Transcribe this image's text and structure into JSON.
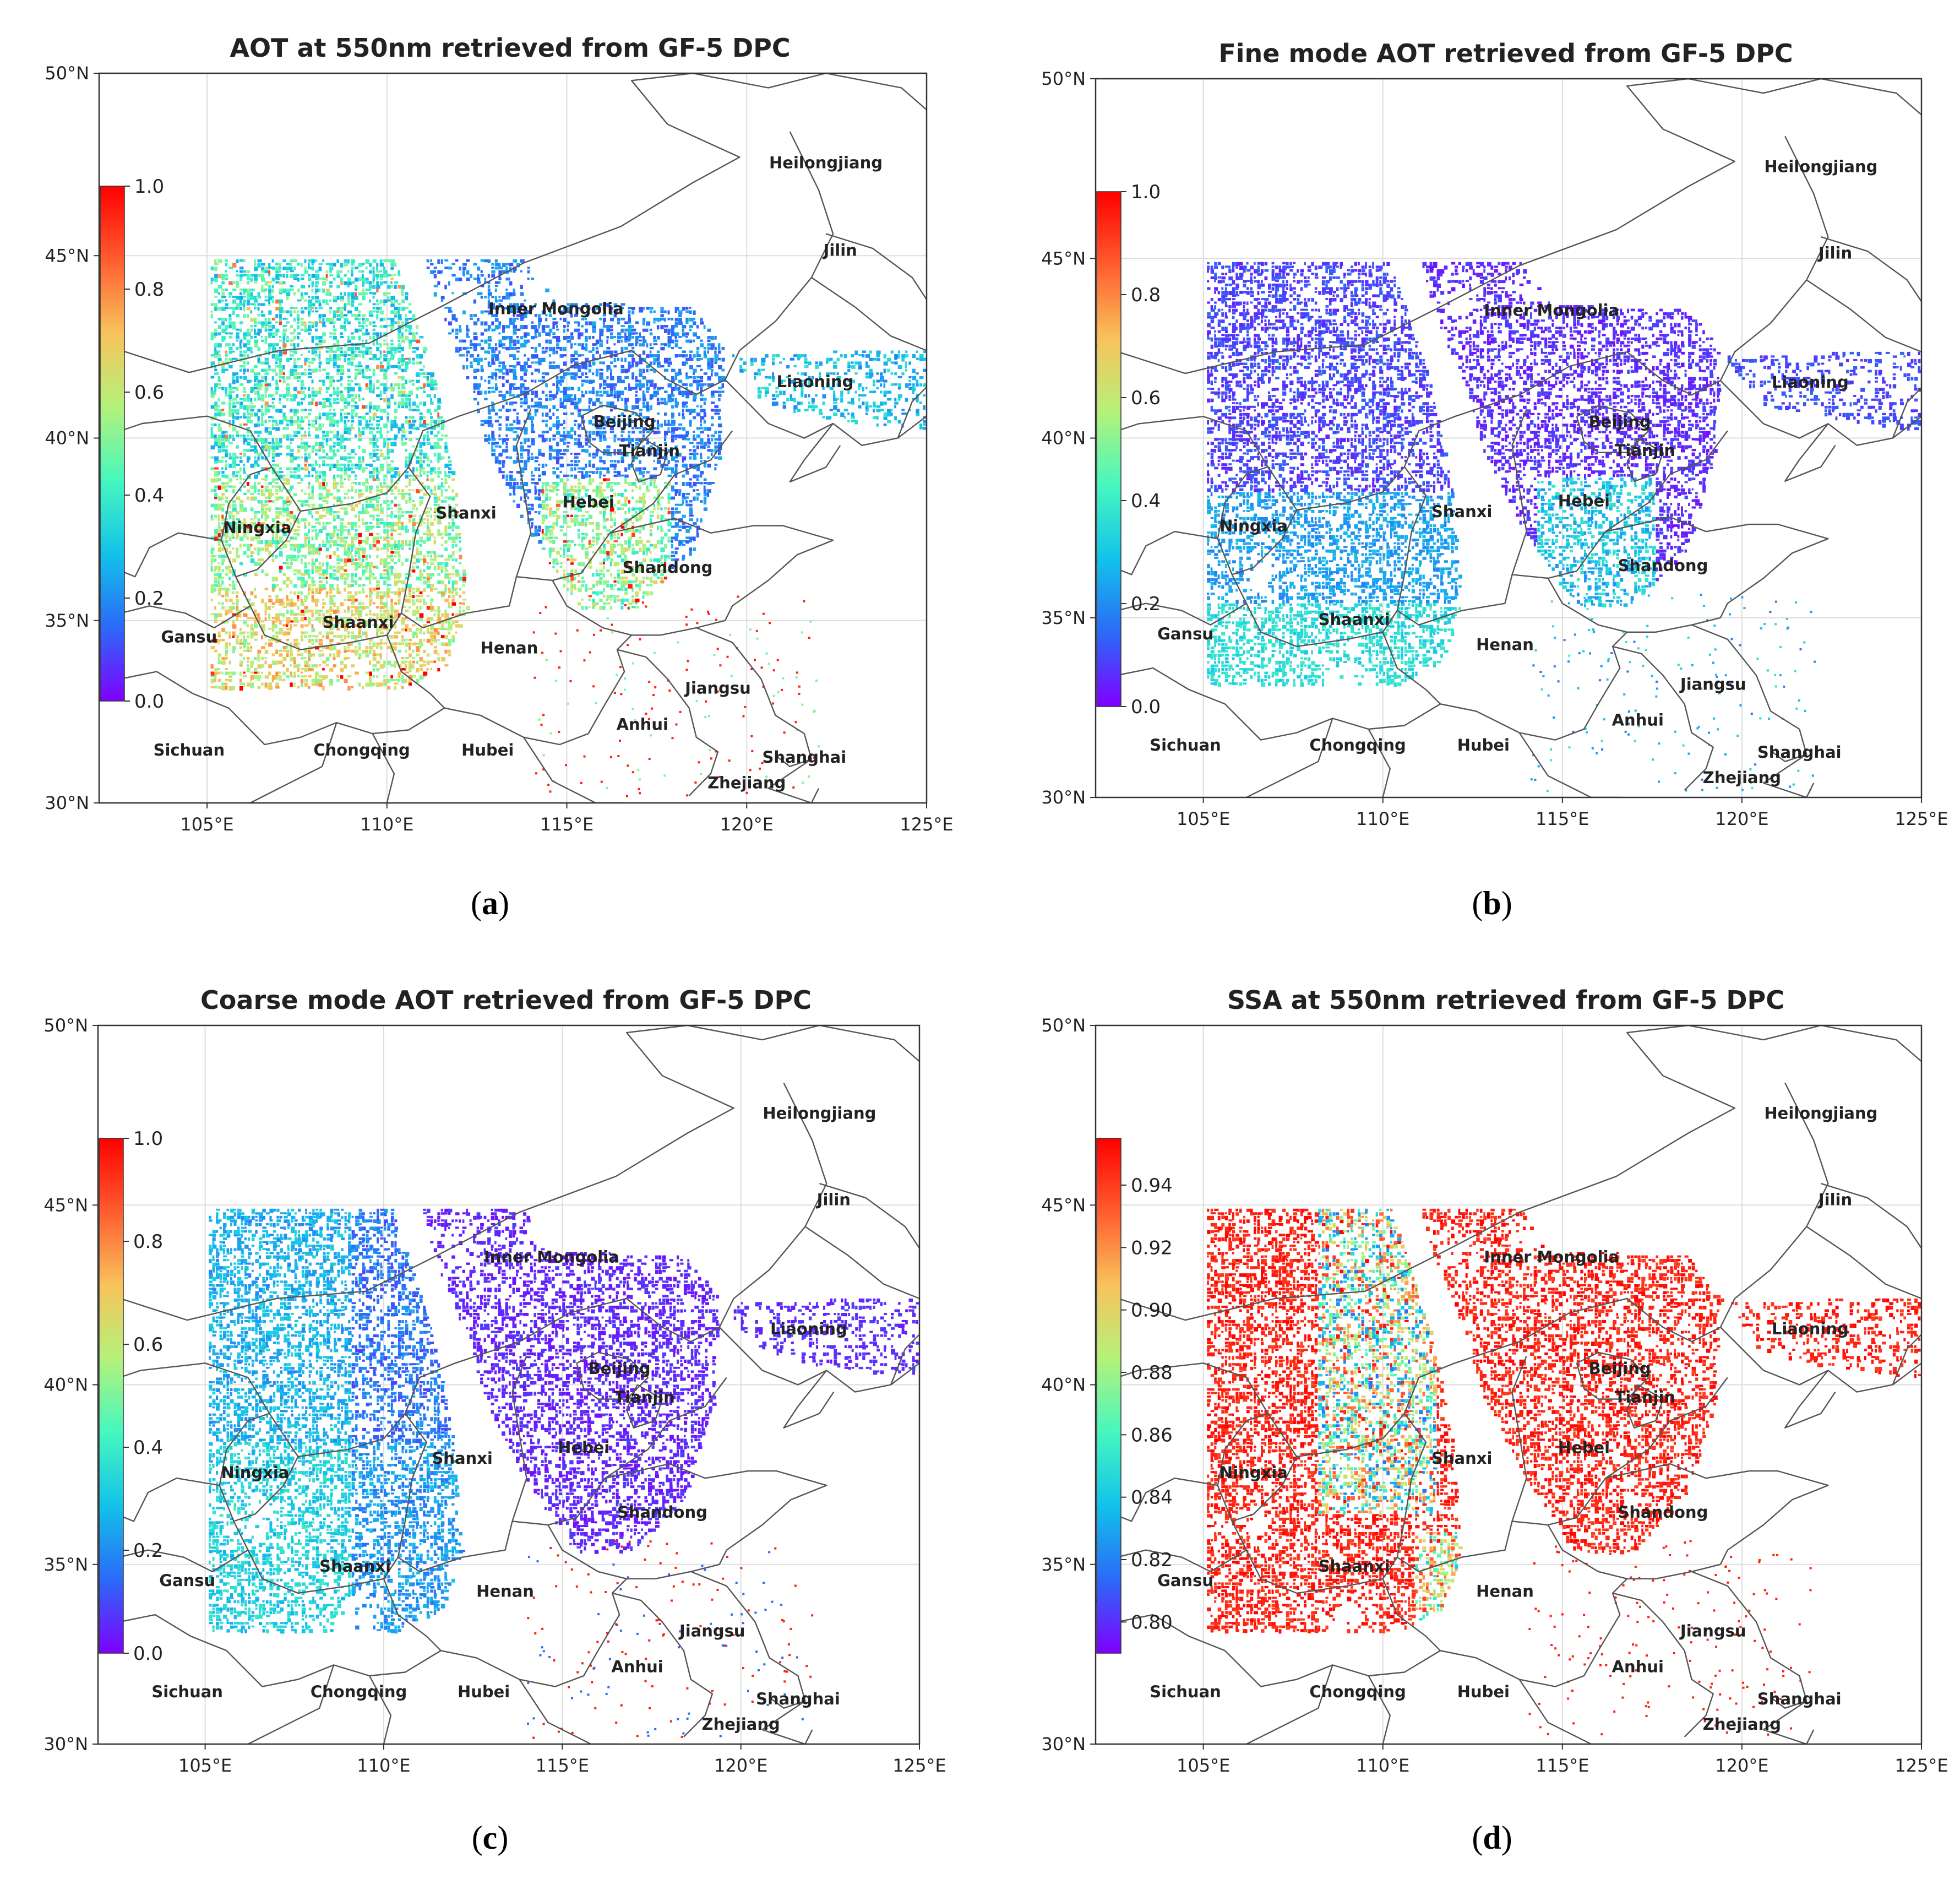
{
  "figure": {
    "panels": [
      {
        "id": "a",
        "title": "AOT at 550nm retrieved from GF-5 DPC",
        "caption_letter": "a",
        "colorbar": {
          "min": 0.0,
          "max": 1.0,
          "tick_values": [
            1.0,
            0.8,
            0.6,
            0.4,
            0.2,
            0.0
          ],
          "tick_labels": [
            "1.0",
            "0.8",
            "0.6",
            "0.4",
            "0.2",
            "0.0"
          ]
        },
        "field_style": "total"
      },
      {
        "id": "b",
        "title": "Fine mode AOT retrieved from GF-5 DPC",
        "caption_letter": "b",
        "colorbar": {
          "min": 0.0,
          "max": 1.0,
          "tick_values": [
            1.0,
            0.8,
            0.6,
            0.4,
            0.2,
            0.0
          ],
          "tick_labels": [
            "1.0",
            "0.8",
            "0.6",
            "0.4",
            "0.2",
            "0.0"
          ]
        },
        "field_style": "fine"
      },
      {
        "id": "c",
        "title": "Coarse mode AOT retrieved from GF-5 DPC",
        "caption_letter": "c",
        "colorbar": {
          "min": 0.0,
          "max": 1.0,
          "tick_values": [
            1.0,
            0.8,
            0.6,
            0.4,
            0.2,
            0.0
          ],
          "tick_labels": [
            "1.0",
            "0.8",
            "0.6",
            "0.4",
            "0.2",
            "0.0"
          ]
        },
        "field_style": "coarse"
      },
      {
        "id": "d",
        "title": "SSA at 550nm retrieved from GF-5 DPC",
        "caption_letter": "d",
        "colorbar": {
          "min": 0.79,
          "max": 0.955,
          "tick_values": [
            0.94,
            0.92,
            0.9,
            0.88,
            0.86,
            0.84,
            0.82,
            0.8
          ],
          "tick_labels": [
            "0.94",
            "0.92",
            "0.90",
            "0.88",
            "0.86",
            "0.84",
            "0.82",
            "0.80"
          ]
        },
        "field_style": "ssa"
      }
    ]
  },
  "map": {
    "lon_range": [
      102,
      125
    ],
    "lat_range": [
      30,
      50
    ],
    "lon_ticks": [
      105,
      110,
      115,
      120,
      125
    ],
    "lon_tick_labels": [
      "105°E",
      "110°E",
      "115°E",
      "120°E",
      "125°E"
    ],
    "lat_ticks": [
      30,
      35,
      40,
      45,
      50
    ],
    "lat_tick_labels": [
      "30°N",
      "35°N",
      "40°N",
      "45°N",
      "50°N"
    ],
    "provinces": [
      {
        "name": "Heilongjiang",
        "lon": 122.2,
        "lat": 47.4
      },
      {
        "name": "Jilin",
        "lon": 122.6,
        "lat": 45.0
      },
      {
        "name": "Liaoning",
        "lon": 121.9,
        "lat": 41.4
      },
      {
        "name": "Inner Mongolia",
        "lon": 114.7,
        "lat": 43.4
      },
      {
        "name": "Beijing",
        "lon": 116.6,
        "lat": 40.3
      },
      {
        "name": "Tianjin",
        "lon": 117.3,
        "lat": 39.5
      },
      {
        "name": "Hebei",
        "lon": 115.6,
        "lat": 38.1
      },
      {
        "name": "Shanxi",
        "lon": 112.2,
        "lat": 37.8
      },
      {
        "name": "Shandong",
        "lon": 117.8,
        "lat": 36.3
      },
      {
        "name": "Ningxia",
        "lon": 106.4,
        "lat": 37.4
      },
      {
        "name": "Shaanxi",
        "lon": 109.2,
        "lat": 34.8
      },
      {
        "name": "Gansu",
        "lon": 104.5,
        "lat": 34.4
      },
      {
        "name": "Henan",
        "lon": 113.4,
        "lat": 34.1
      },
      {
        "name": "Jiangsu",
        "lon": 119.2,
        "lat": 33.0
      },
      {
        "name": "Anhui",
        "lon": 117.1,
        "lat": 32.0
      },
      {
        "name": "Sichuan",
        "lon": 104.5,
        "lat": 31.3
      },
      {
        "name": "Chongqing",
        "lon": 109.3,
        "lat": 31.3
      },
      {
        "name": "Hubei",
        "lon": 112.8,
        "lat": 31.3
      },
      {
        "name": "Shanghai",
        "lon": 121.6,
        "lat": 31.1
      },
      {
        "name": "Zhejiang",
        "lon": 120.0,
        "lat": 30.4
      }
    ]
  },
  "colors": {
    "colormap": [
      "#7f00ff",
      "#2b6af8",
      "#12c2ea",
      "#46f7bf",
      "#b4f27a",
      "#f8c35b",
      "#ff5d2f",
      "#ff0000"
    ],
    "boundary": "#555555",
    "grid": "#dddddd",
    "axis": "#333333",
    "text": "#222222"
  }
}
